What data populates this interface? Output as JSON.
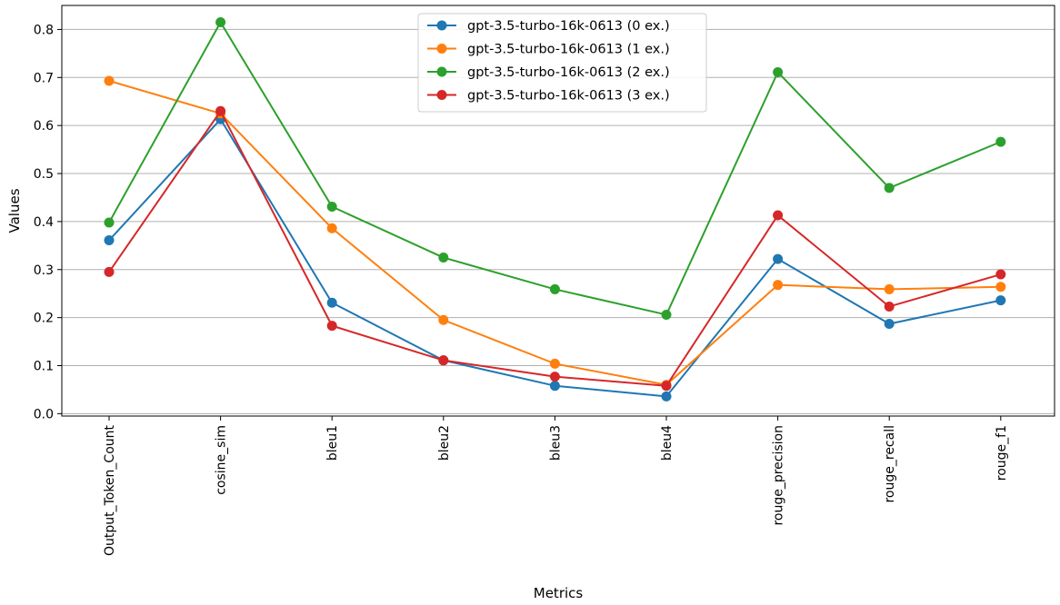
{
  "chart_data": {
    "type": "line",
    "title": "",
    "xlabel": "Metrics",
    "ylabel": "Values",
    "categories": [
      "Output_Token_Count",
      "cosine_sim",
      "bleu1",
      "bleu2",
      "bleu3",
      "bleu4",
      "rouge_precision",
      "rouge_recall",
      "rouge_f1"
    ],
    "ylim": [
      -0.005,
      0.85
    ],
    "yticks": [
      "0.0",
      "0.1",
      "0.2",
      "0.3",
      "0.4",
      "0.5",
      "0.6",
      "0.7",
      "0.8"
    ],
    "grid": "horizontal",
    "legend": "top-center",
    "series": [
      {
        "name": "gpt-3.5-turbo-16k-0613 (0 ex.)",
        "color": "#1f77b4",
        "values": [
          0.361,
          0.613,
          0.231,
          0.111,
          0.058,
          0.036,
          0.322,
          0.187,
          0.236
        ]
      },
      {
        "name": "gpt-3.5-turbo-16k-0613 (1 ex.)",
        "color": "#ff7f0e",
        "values": [
          0.693,
          0.625,
          0.386,
          0.195,
          0.104,
          0.06,
          0.268,
          0.259,
          0.264
        ]
      },
      {
        "name": "gpt-3.5-turbo-16k-0613 (2 ex.)",
        "color": "#2ca02c",
        "values": [
          0.398,
          0.815,
          0.431,
          0.325,
          0.259,
          0.206,
          0.711,
          0.47,
          0.566
        ]
      },
      {
        "name": "gpt-3.5-turbo-16k-0613 (3 ex.)",
        "color": "#d62728",
        "values": [
          0.295,
          0.63,
          0.183,
          0.111,
          0.077,
          0.058,
          0.413,
          0.223,
          0.29
        ]
      }
    ]
  }
}
